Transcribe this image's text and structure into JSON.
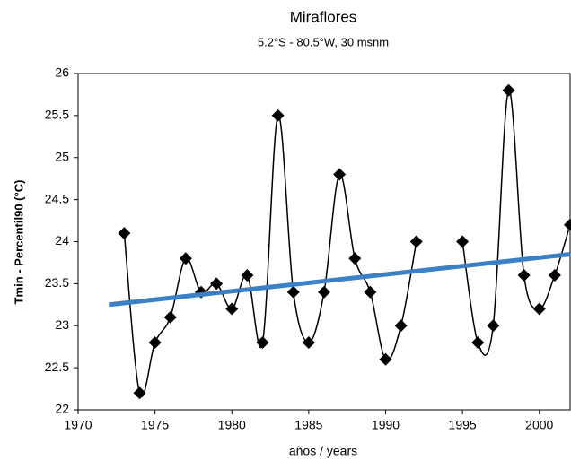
{
  "chart_data": {
    "type": "line",
    "title": "Miraflores",
    "subtitle": "5.2°S - 80.5°W,  30 msnm",
    "x_label": "años / years",
    "y_label": "Tmin - Percentil90 (°C)",
    "xlim": [
      1970,
      2002
    ],
    "xticks": [
      1970,
      1975,
      1980,
      1985,
      1990,
      1995,
      2000
    ],
    "ylim": [
      22,
      26
    ],
    "yticks": [
      22,
      22.5,
      23,
      23.5,
      24,
      24.5,
      25,
      25.5,
      26
    ],
    "series": [
      {
        "color": "#000000",
        "smooth": true,
        "markers": true,
        "x": [
          1973,
          1974,
          1975,
          1976,
          1977,
          1978,
          1979,
          1980,
          1981,
          1982,
          1983,
          1984,
          1985,
          1986,
          1987,
          1988,
          1989,
          1990,
          1991,
          1992,
          1993,
          1994,
          1995,
          1996,
          1997,
          1998,
          1999,
          2000,
          2001,
          2002
        ],
        "values": [
          24.1,
          22.2,
          22.8,
          23.1,
          23.8,
          23.4,
          23.5,
          23.2,
          23.6,
          22.8,
          25.5,
          23.4,
          22.8,
          23.4,
          24.8,
          23.8,
          23.4,
          22.6,
          23.0,
          24.0,
          null,
          null,
          24.0,
          22.8,
          23.0,
          25.8,
          23.6,
          23.2,
          23.6,
          24.2
        ]
      },
      {
        "color": "#3b7fc4",
        "smooth": false,
        "markers": false,
        "x": [
          1972,
          2002
        ],
        "values": [
          23.25,
          23.85
        ]
      }
    ]
  }
}
